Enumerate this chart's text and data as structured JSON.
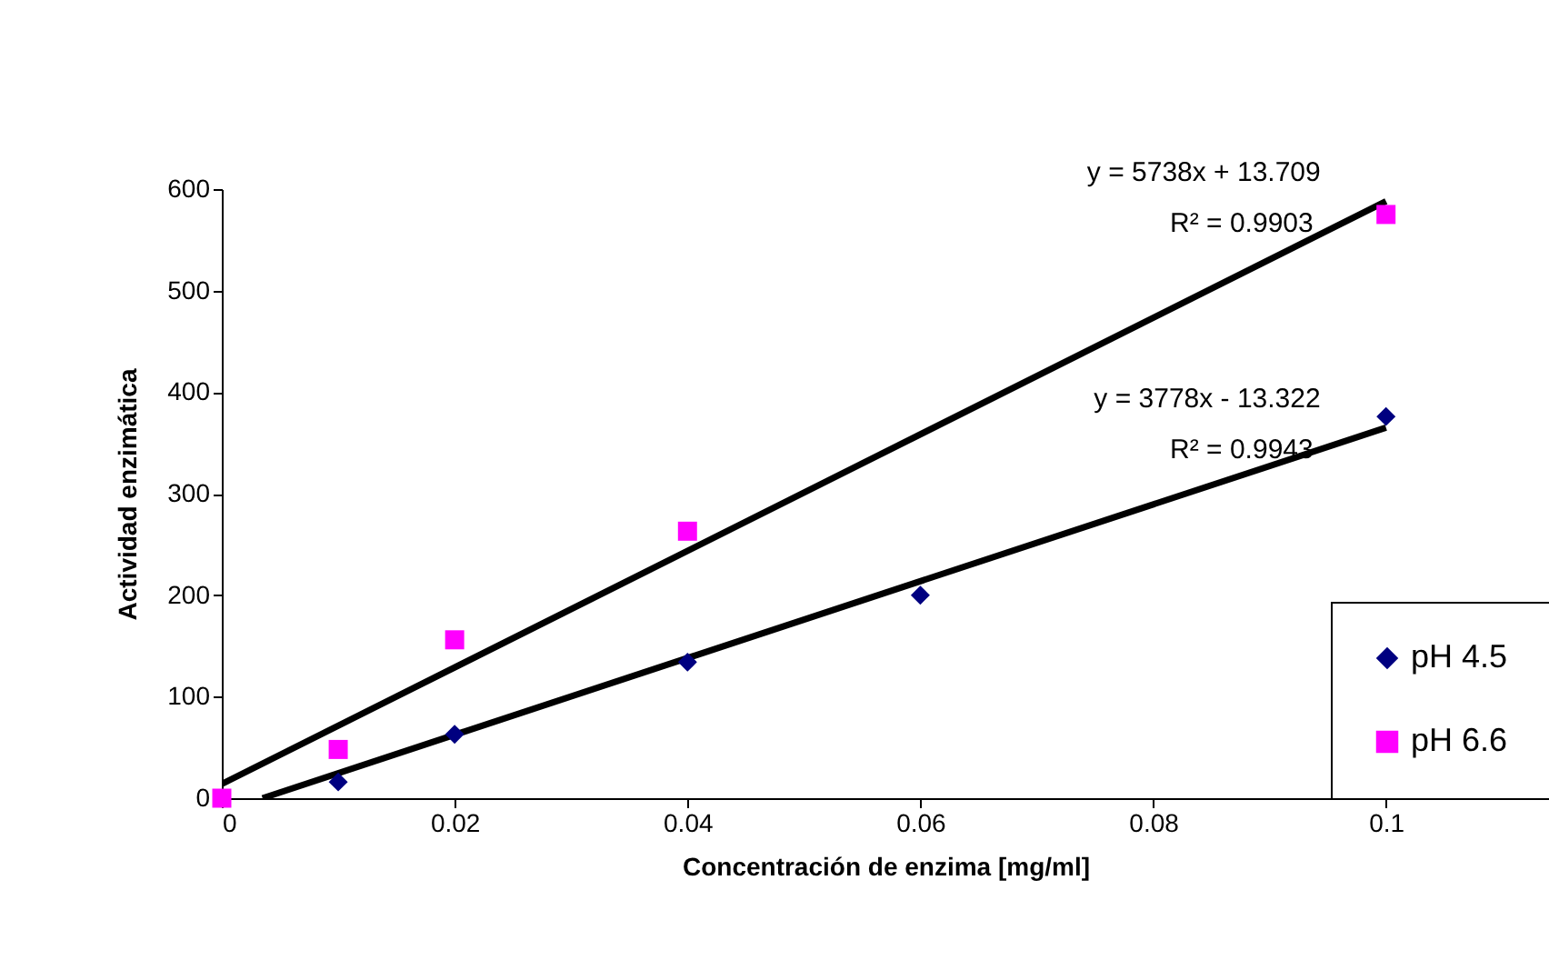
{
  "chart_data": {
    "type": "scatter",
    "xlabel": "Concentración de enzima [mg/ml]",
    "ylabel": "Actividad enzimática",
    "xlim": [
      0,
      0.114
    ],
    "xticks": [
      0,
      0.02,
      0.04,
      0.06,
      0.08,
      0.1
    ],
    "ylim": [
      0,
      600
    ],
    "yticks": [
      0,
      100,
      200,
      300,
      400,
      500,
      600
    ],
    "grid": false,
    "legend": "bottom right",
    "series": [
      {
        "name": "pH 4.5",
        "color": "#000080",
        "marker": "diamond",
        "x": [
          0.01,
          0.02,
          0.04,
          0.06,
          0.1
        ],
        "values": [
          16,
          63,
          134,
          200,
          376
        ]
      },
      {
        "name": "pH 6.6",
        "color": "#ff00ff",
        "marker": "square",
        "x": [
          0,
          0.01,
          0.02,
          0.04,
          0.1
        ],
        "values": [
          0,
          48,
          156,
          263,
          575
        ]
      },
      {
        "type": "line",
        "color": "#000000",
        "x": [
          0,
          0.1
        ],
        "values": [
          14,
          588
        ]
      },
      {
        "type": "line",
        "color": "#000000",
        "x": [
          0.0035,
          0.1
        ],
        "values": [
          0,
          365
        ]
      }
    ],
    "annotations": [
      "y = 5738x + 13.709",
      "R² = 0.9903",
      "y = 3778x - 13.322",
      "R² = 0.9943"
    ]
  }
}
